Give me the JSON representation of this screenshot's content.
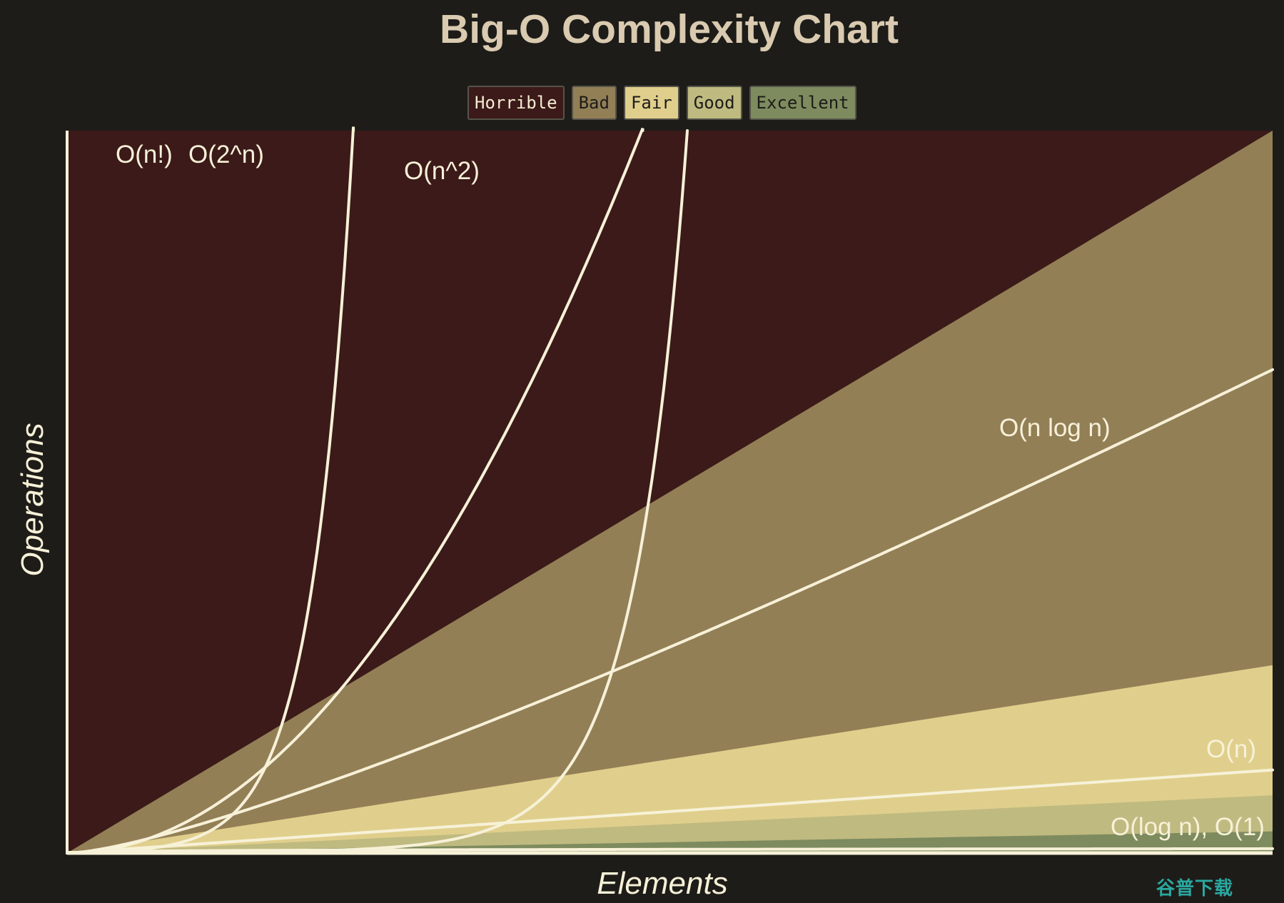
{
  "chart_data": {
    "type": "area",
    "title": "Big-O Complexity Chart",
    "xlabel": "Elements",
    "ylabel": "Operations",
    "xlim": [
      0,
      100
    ],
    "ylim": [
      0,
      1000
    ],
    "grid": false,
    "legend_placement": "top-center",
    "legend": [
      {
        "label": "Horrible",
        "color": "#3b1a19",
        "text_color": "#f4ecd2"
      },
      {
        "label": "Bad",
        "color": "#937f56",
        "text_color": "#1d1c19"
      },
      {
        "label": "Fair",
        "color": "#e0cf8c",
        "text_color": "#1d1c19"
      },
      {
        "label": "Good",
        "color": "#bfba80",
        "text_color": "#1d1c19"
      },
      {
        "label": "Excellent",
        "color": "#7d8b5e",
        "text_color": "#1d1c19"
      }
    ],
    "regions": [
      {
        "name": "Horrible",
        "upper_slope": null,
        "color": "#3b1a19"
      },
      {
        "name": "Bad",
        "upper_slope": 10,
        "color": "#937f56"
      },
      {
        "name": "Fair",
        "upper_slope": 2.6,
        "color": "#e0cf8c"
      },
      {
        "name": "Good",
        "upper_slope": 0.8,
        "color": "#bfba80"
      },
      {
        "name": "Excellent",
        "upper_slope": 0.3,
        "color": "#7d8b5e"
      }
    ],
    "series": [
      {
        "name": "O(n!)",
        "function": "factorial"
      },
      {
        "name": "O(2^n)",
        "function": "exponential"
      },
      {
        "name": "O(n^2)",
        "function": "quadratic"
      },
      {
        "name": "O(n log n)",
        "function": "nlogn"
      },
      {
        "name": "O(n)",
        "function": "linear"
      },
      {
        "name": "O(log n), O(1)",
        "function": "logarithmic_constant"
      }
    ],
    "curve_color": "#f7f1d8"
  },
  "watermark": "谷普下载"
}
